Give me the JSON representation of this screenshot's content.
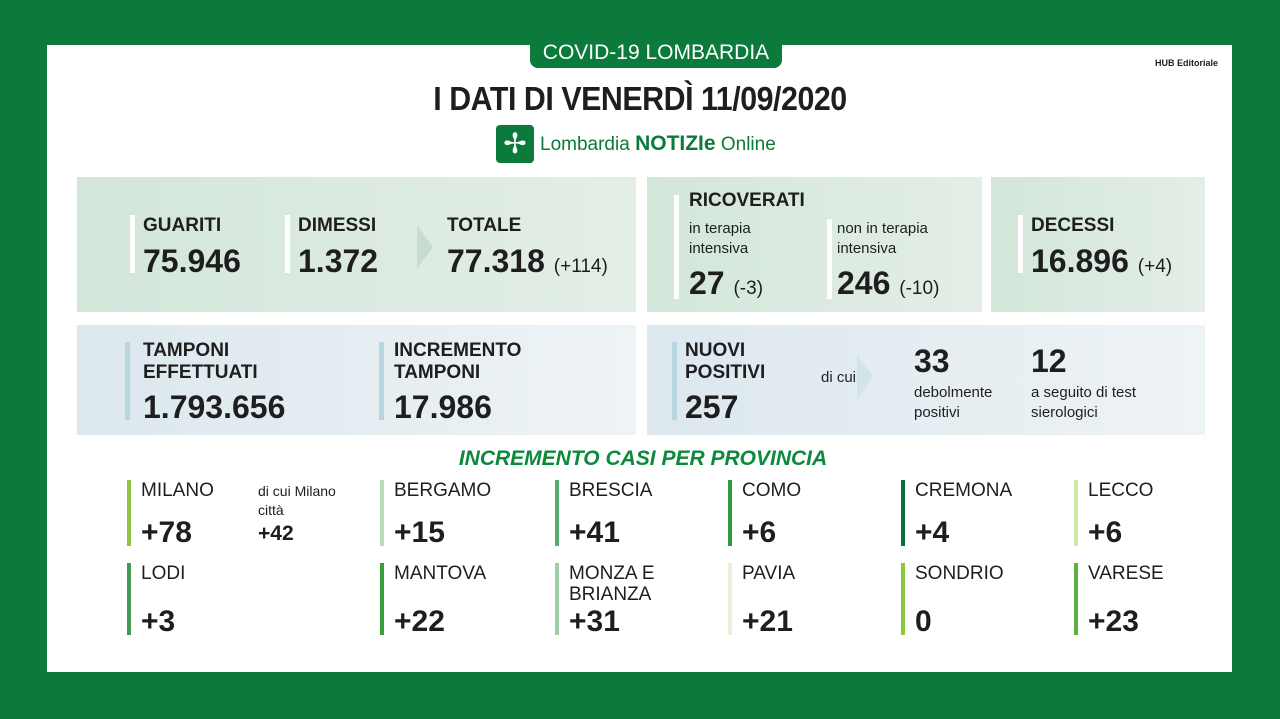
{
  "header": {
    "tab": "COVID-19 LOMBARDIA",
    "hub": "HUB Editoriale",
    "title": "I DATI DI VENERDÌ 11/09/2020",
    "logo_prefix": "Lombardia",
    "logo_bold": "NOTIZIe",
    "logo_suffix": "Online"
  },
  "guariti": {
    "label": "GUARITI",
    "value": "75.946"
  },
  "dimessi": {
    "label": "DIMESSI",
    "value": "1.372"
  },
  "totale": {
    "label": "TOTALE",
    "value": "77.318",
    "delta": "(+114)"
  },
  "ricoverati": {
    "label": "RICOVERATI",
    "ti_label": "in terapia intensiva",
    "ti_value": "27",
    "ti_delta": "(-3)",
    "nti_label": "non in terapia intensiva",
    "nti_value": "246",
    "nti_delta": "(-10)"
  },
  "decessi": {
    "label": "DECESSI",
    "value": "16.896",
    "delta": "(+4)"
  },
  "tamponi": {
    "label": "TAMPONI EFFETTUATI",
    "value": "1.793.656"
  },
  "incremento": {
    "label": "INCREMENTO TAMPONI",
    "value": "17.986"
  },
  "positivi": {
    "label": "NUOVI POSITIVI",
    "value": "257",
    "di_cui": "di cui",
    "deboli_value": "33",
    "deboli_label": "debolmente positivi",
    "siero_value": "12",
    "siero_label": "a seguito di test sierologici"
  },
  "province_title": "INCREMENTO CASI PER PROVINCIA",
  "milano_city": {
    "label": "di cui Milano città",
    "value": "+42"
  },
  "province": [
    {
      "name": "MILANO",
      "value": "+78",
      "color": "#8cc63f"
    },
    {
      "name": "BERGAMO",
      "value": "+15",
      "color": "#b9dcb9"
    },
    {
      "name": "BRESCIA",
      "value": "+41",
      "color": "#5aaa6e"
    },
    {
      "name": "COMO",
      "value": "+6",
      "color": "#2e9a3e"
    },
    {
      "name": "CREMONA",
      "value": "+4",
      "color": "#0b6e35"
    },
    {
      "name": "LECCO",
      "value": "+6",
      "color": "#cfe8a8"
    },
    {
      "name": "LODI",
      "value": "+3",
      "color": "#3f9a55"
    },
    {
      "name": "MANTOVA",
      "value": "+22",
      "color": "#3a9e3a"
    },
    {
      "name": "MONZA E BRIANZA",
      "value": "+31",
      "color": "#9ccfa6"
    },
    {
      "name": "PAVIA",
      "value": "+21",
      "color": "#e6f3d8"
    },
    {
      "name": "SONDRIO",
      "value": "0",
      "color": "#8cc63f"
    },
    {
      "name": "VARESE",
      "value": "+23",
      "color": "#5daf3e"
    }
  ]
}
